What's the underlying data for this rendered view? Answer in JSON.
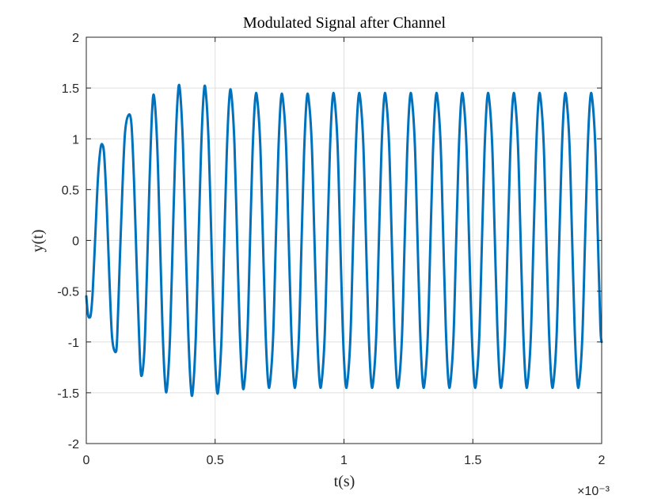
{
  "chart_data": {
    "type": "line",
    "title": "Modulated Signal after Channel",
    "xlabel": "t(s)",
    "ylabel": "y(t)",
    "xlim": [
      0,
      0.002
    ],
    "ylim": [
      -2,
      2
    ],
    "x_ticks": [
      0,
      0.0005,
      0.001,
      0.0015,
      0.002
    ],
    "x_tick_labels": [
      "0",
      "0.5",
      "1",
      "1.5",
      "2"
    ],
    "x_exponent_label": "×10⁻³",
    "y_ticks": [
      -2,
      -1.5,
      -1,
      -0.5,
      0,
      0.5,
      1,
      1.5,
      2
    ],
    "y_tick_labels": [
      "-2",
      "-1.5",
      "-1",
      "-0.5",
      "0",
      "0.5",
      "1",
      "1.5",
      "2"
    ],
    "grid": true,
    "line_color": "#0072BD",
    "series": [
      {
        "name": "",
        "color": "#0072BD",
        "x": [
          0,
          6e-06,
          1.2e-05,
          1.8e-05,
          2.5e-05,
          3.5e-05,
          4.5e-05,
          5.5e-05,
          6.3e-05,
          7e-05,
          8e-05,
          9e-05,
          0.0001,
          0.000113,
          0.00012,
          0.00013,
          0.00014,
          0.00015,
          0.000163,
          0.000175,
          0.000185,
          0.000195,
          0.000205,
          0.000213,
          0.000225,
          0.000235,
          0.000245,
          0.000255,
          0.000263,
          0.000275,
          0.000285,
          0.000295,
          0.000305,
          0.000313,
          0.000325,
          0.000335,
          0.000345,
          0.000355,
          0.000363,
          0.000375,
          0.000385,
          0.000395,
          0.000405,
          0.000413,
          0.000425,
          0.000435,
          0.000445,
          0.000455,
          0.000463,
          0.000475,
          0.000485,
          0.000495,
          0.000505,
          0.000513,
          0.000525,
          0.000535,
          0.000545,
          0.000555,
          0.000563,
          0.000575,
          0.000585,
          0.000595,
          0.000605,
          0.000613,
          0.000625,
          0.000635,
          0.000645,
          0.000655,
          0.000663,
          0.000675,
          0.000685,
          0.000695,
          0.000705,
          0.000713,
          0.000725,
          0.000735,
          0.000745,
          0.000755,
          0.000763,
          0.000775,
          0.000785,
          0.000795,
          0.000805,
          0.000813,
          0.000825,
          0.000835,
          0.000845,
          0.000855,
          0.000863,
          0.000875,
          0.000885,
          0.000895,
          0.000905,
          0.000913,
          0.000925,
          0.000935,
          0.000945,
          0.000955,
          0.000963,
          0.000975,
          0.000985,
          0.000995,
          0.001005,
          0.001013,
          0.001025,
          0.001035,
          0.001045,
          0.001055,
          0.001063,
          0.001075,
          0.001085,
          0.001095,
          0.001105,
          0.001113,
          0.001125,
          0.001135,
          0.001145,
          0.001155,
          0.001163,
          0.001175,
          0.001185,
          0.001195,
          0.001205,
          0.001213,
          0.001225,
          0.001235,
          0.001245,
          0.001255,
          0.001263,
          0.001275,
          0.001285,
          0.001295,
          0.001305,
          0.001313,
          0.001325,
          0.001335,
          0.001345,
          0.001355,
          0.001363,
          0.001375,
          0.001385,
          0.001395,
          0.001405,
          0.001413,
          0.001425,
          0.001435,
          0.001445,
          0.001455,
          0.001463,
          0.001475,
          0.001485,
          0.001495,
          0.001505,
          0.001513,
          0.001525,
          0.001535,
          0.001545,
          0.001555,
          0.001563,
          0.001575,
          0.001585,
          0.001595,
          0.001605,
          0.001613,
          0.001625,
          0.001635,
          0.001645,
          0.001655,
          0.001663,
          0.001675,
          0.001685,
          0.001695,
          0.001705,
          0.001713,
          0.001725,
          0.001735,
          0.001745,
          0.001755,
          0.001763,
          0.001775,
          0.001785,
          0.001795,
          0.001805,
          0.001813,
          0.001825,
          0.001835,
          0.001845,
          0.001855,
          0.001863,
          0.001875,
          0.001885,
          0.001895,
          0.001905,
          0.001913,
          0.001925,
          0.001935,
          0.001945,
          0.001955,
          0.001963,
          0.001975,
          0.001985,
          0.001995,
          0.002
        ],
        "y": [
          -0.55,
          -0.72,
          -0.76,
          -0.72,
          -0.5,
          0.05,
          0.6,
          0.9,
          0.94,
          0.82,
          0.3,
          -0.4,
          -0.95,
          -1.1,
          -0.95,
          -0.2,
          0.5,
          1.05,
          1.23,
          1.15,
          0.6,
          -0.2,
          -0.95,
          -1.33,
          -1.1,
          -0.35,
          0.55,
          1.25,
          1.42,
          0.95,
          0.1,
          -0.8,
          -1.38,
          -1.46,
          -0.95,
          -0.05,
          0.85,
          1.42,
          1.49,
          0.95,
          0.05,
          -0.85,
          -1.42,
          -1.49,
          -0.95,
          -0.05,
          0.85,
          1.42,
          1.48,
          0.95,
          0.05,
          -0.85,
          -1.42,
          -1.46,
          -0.95,
          -0.05,
          0.85,
          1.4,
          1.44,
          0.95,
          0.05,
          -0.85,
          -1.38,
          -1.42,
          -0.95,
          -0.05,
          0.85,
          1.38,
          1.4,
          0.95,
          0.05,
          -0.85,
          -1.38,
          -1.4,
          -0.95,
          -0.05,
          0.85,
          1.38,
          1.39,
          0.95,
          0.05,
          -0.85,
          -1.38,
          -1.4,
          -0.95,
          -0.05,
          0.85,
          1.38,
          1.39,
          0.95,
          0.05,
          -0.85,
          -1.38,
          -1.4,
          -0.95,
          -0.05,
          0.85,
          1.38,
          1.4,
          0.95,
          0.05,
          -0.85,
          -1.38,
          -1.4,
          -0.95,
          -0.05,
          0.85,
          1.38,
          1.4,
          0.95,
          0.05,
          -0.85,
          -1.38,
          -1.4,
          -0.95,
          -0.05,
          0.85,
          1.38,
          1.4,
          0.95,
          0.05,
          -0.85,
          -1.38,
          -1.4,
          -0.95,
          -0.05,
          0.85,
          1.38,
          1.4,
          0.95,
          0.05,
          -0.85,
          -1.38,
          -1.4,
          -0.95,
          -0.05,
          0.85,
          1.38,
          1.4,
          0.95,
          0.05,
          -0.85,
          -1.38,
          -1.4,
          -0.95,
          -0.05,
          0.85,
          1.38,
          1.4,
          0.95,
          0.05,
          -0.85,
          -1.38,
          -1.4,
          -0.95,
          -0.05,
          0.85,
          1.38,
          1.4,
          0.95,
          0.05,
          -0.85,
          -1.38,
          -1.4,
          -0.95,
          -0.05,
          0.85,
          1.38,
          1.4,
          0.95,
          0.05,
          -0.85,
          -1.38,
          -1.4,
          -0.95,
          -0.05,
          0.85,
          1.38,
          1.4,
          0.95,
          0.05,
          -0.85,
          -1.38,
          -1.4,
          -0.95,
          -0.05,
          0.85,
          1.38,
          1.4,
          0.95,
          0.05,
          -0.85,
          -1.38,
          -1.4,
          -0.95,
          -0.05,
          0.85,
          1.38,
          1.4,
          0.95,
          0.05,
          -0.85,
          -1.0
        ]
      }
    ]
  }
}
